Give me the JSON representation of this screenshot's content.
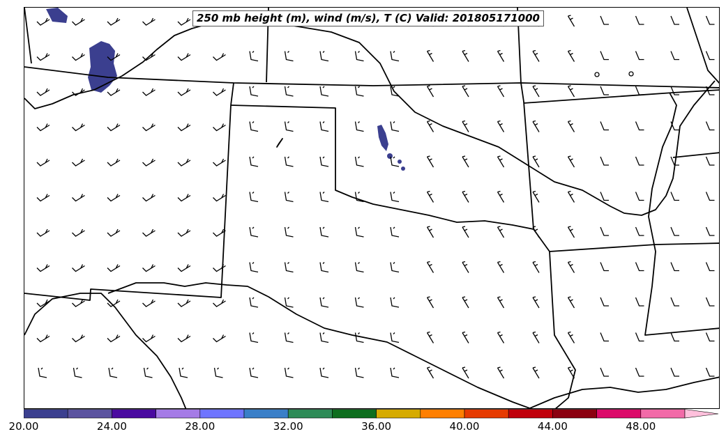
{
  "title": "250 mb height (m), wind (m/s), T (C) Valid: 201805171000",
  "colorbar": {
    "tick_labels": [
      "20.00",
      "24.00",
      "28.00",
      "32.00",
      "36.00",
      "40.00",
      "44.00",
      "48.00"
    ],
    "colors": [
      "#3b3f8f",
      "#5b539f",
      "#4a0aa0",
      "#a57be6",
      "#6f75ff",
      "#3a7fc8",
      "#2e8b57",
      "#0e6e1e",
      "#d6ab00",
      "#ff7f00",
      "#e63a00",
      "#c0000b",
      "#8b0010",
      "#dc0a6a",
      "#f26aa8",
      "#ffc0dc"
    ],
    "overflow": "max"
  },
  "colors": {
    "temperature_fill": "#3b3f8f"
  }
}
